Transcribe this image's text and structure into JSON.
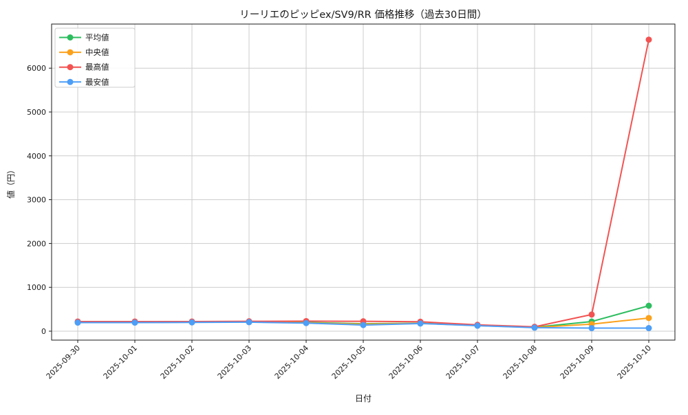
{
  "chart_data": {
    "type": "line",
    "title": "リーリエのピッピex/SV9/RR 価格推移（過去30日間）",
    "xlabel": "日付",
    "ylabel": "値（円）",
    "categories": [
      "2025-09-30",
      "2025-10-01",
      "2025-10-02",
      "2025-10-03",
      "2025-10-04",
      "2025-10-05",
      "2025-10-06",
      "2025-10-07",
      "2025-10-08",
      "2025-10-09",
      "2025-10-10"
    ],
    "y_ticks": [
      0,
      1000,
      2000,
      3000,
      4000,
      5000,
      6000
    ],
    "ylim": [
      -200,
      7000
    ],
    "grid": true,
    "grid_color": "#cccccc",
    "background": "#ffffff",
    "legend_position": "upper-left",
    "series": [
      {
        "name": "平均値",
        "color": "#2dbd5f",
        "values": [
          205,
          205,
          208,
          212,
          200,
          170,
          182,
          132,
          90,
          220,
          580
        ]
      },
      {
        "name": "中央値",
        "color": "#fba11b",
        "values": [
          200,
          200,
          205,
          210,
          190,
          160,
          178,
          128,
          85,
          160,
          300
        ]
      },
      {
        "name": "最高値",
        "color": "#f25352",
        "values": [
          220,
          220,
          220,
          225,
          230,
          225,
          215,
          145,
          100,
          380,
          6650
        ]
      },
      {
        "name": "最安値",
        "color": "#4d9ef7",
        "values": [
          195,
          195,
          200,
          205,
          185,
          140,
          175,
          125,
          80,
          70,
          70
        ]
      }
    ]
  }
}
